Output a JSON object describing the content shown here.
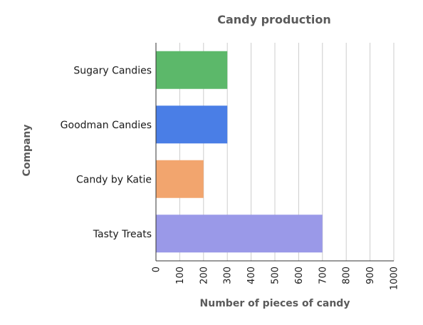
{
  "chart_data": {
    "type": "bar",
    "orientation": "horizontal",
    "title": "Candy production",
    "xlabel": "Number of pieces of candy",
    "ylabel": "Company",
    "categories": [
      "Sugary Candies",
      "Goodman Candies",
      "Candy by Katie",
      "Tasty Treats"
    ],
    "values": [
      300,
      300,
      200,
      700
    ],
    "colors": [
      "#5cb86a",
      "#4a7ee6",
      "#f2a56e",
      "#9a99e8"
    ],
    "xlim": [
      0,
      1000
    ],
    "xticks": [
      "0",
      "100",
      "200",
      "300",
      "400",
      "500",
      "600",
      "700",
      "800",
      "900",
      "1000"
    ],
    "grid": true,
    "legend": "none"
  }
}
